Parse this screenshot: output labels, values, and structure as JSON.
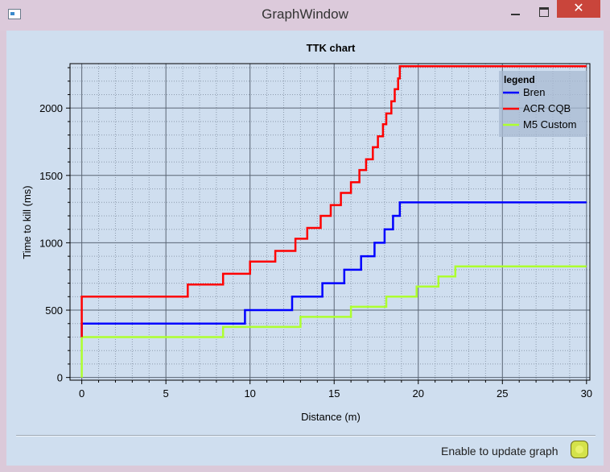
{
  "window": {
    "title": "GraphWindow",
    "close_glyph": "✕"
  },
  "icons": {
    "app": "graph-window-icon",
    "minimize": "minimize-icon",
    "maximize": "maximize-icon",
    "close": "close-icon"
  },
  "chart_data": {
    "type": "line",
    "title": "TTK chart",
    "xlabel": "Distance (m)",
    "ylabel": "Time to kill (ms)",
    "xlim": [
      -0.7,
      30.2
    ],
    "ylim": [
      -20,
      2330
    ],
    "xticks": [
      0,
      5,
      10,
      15,
      20,
      25,
      30
    ],
    "yticks": [
      0,
      500,
      1000,
      1500,
      2000
    ],
    "grid": true,
    "legend": {
      "title": "legend",
      "position": "top-right"
    },
    "series": [
      {
        "name": "Bren",
        "color": "#0000ff",
        "x": [
          0,
          0,
          9.7,
          9.7,
          12.5,
          12.5,
          14.3,
          14.3,
          15.6,
          15.6,
          16.6,
          16.6,
          17.4,
          17.4,
          18.0,
          18.0,
          18.5,
          18.5,
          18.9,
          18.9,
          30
        ],
        "y": [
          300,
          400,
          400,
          500,
          500,
          600,
          600,
          700,
          700,
          800,
          800,
          900,
          900,
          1000,
          1000,
          1100,
          1100,
          1200,
          1200,
          1300,
          1300
        ]
      },
      {
        "name": "ACR CQB",
        "color": "#ff0000",
        "x": [
          0,
          0,
          6.3,
          6.3,
          8.4,
          8.4,
          10.0,
          10.0,
          11.5,
          11.5,
          12.7,
          12.7,
          13.4,
          13.4,
          14.2,
          14.2,
          14.8,
          14.8,
          15.4,
          15.4,
          16.0,
          16.0,
          16.5,
          16.5,
          16.9,
          16.9,
          17.3,
          17.3,
          17.6,
          17.6,
          17.9,
          17.9,
          18.1,
          18.1,
          18.4,
          18.4,
          18.6,
          18.6,
          18.8,
          18.8,
          18.9,
          18.9,
          30
        ],
        "y": [
          300,
          600,
          600,
          690,
          690,
          770,
          770,
          860,
          860,
          940,
          940,
          1030,
          1030,
          1110,
          1110,
          1200,
          1200,
          1280,
          1280,
          1370,
          1370,
          1450,
          1450,
          1540,
          1540,
          1620,
          1620,
          1710,
          1710,
          1790,
          1790,
          1880,
          1880,
          1960,
          1960,
          2050,
          2050,
          2140,
          2140,
          2220,
          2220,
          2310,
          2310
        ]
      },
      {
        "name": "M5 Custom",
        "color": "#adff2f",
        "x": [
          0,
          0,
          8.4,
          8.4,
          13.0,
          13.0,
          16.0,
          16.0,
          18.1,
          18.1,
          19.9,
          19.9,
          21.2,
          21.2,
          22.2,
          22.2,
          30
        ],
        "y": [
          0,
          300,
          300,
          375,
          375,
          450,
          450,
          525,
          525,
          600,
          600,
          675,
          675,
          750,
          750,
          825,
          825
        ]
      }
    ]
  },
  "footer": {
    "update_label": "Enable to update graph",
    "update_enabled": true
  }
}
